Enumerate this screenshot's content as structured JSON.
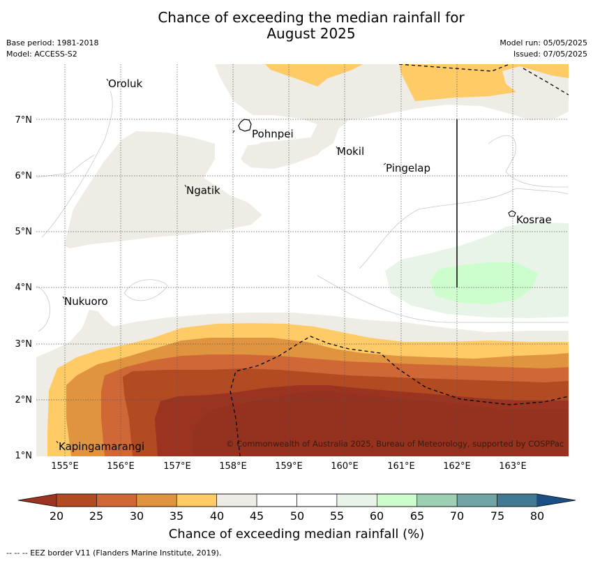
{
  "title_line1": "Chance of exceeding the median rainfall for",
  "title_line2": "August 2025",
  "meta_left": {
    "base_period": "Base period: 1981-2018",
    "model": "Model: ACCESS-S2"
  },
  "meta_right": {
    "model_run": "Model run: 05/05/2025",
    "issued": "Issued: 07/05/2025"
  },
  "map": {
    "lon_range": [
      154.5,
      164.0
    ],
    "lat_range": [
      1.0,
      8.0
    ],
    "x_ticks": [
      "155°E",
      "156°E",
      "157°E",
      "158°E",
      "159°E",
      "160°E",
      "161°E",
      "162°E",
      "163°E"
    ],
    "y_ticks": [
      "1°N",
      "2°N",
      "3°N",
      "4°N",
      "5°N",
      "6°N",
      "7°N"
    ],
    "places": [
      {
        "name": "Oroluk",
        "lon": 155.5,
        "lat": 7.65
      },
      {
        "name": "Pohnpei",
        "lon": 158.3,
        "lat": 6.9
      },
      {
        "name": "Mokil",
        "lon": 159.8,
        "lat": 6.65
      },
      {
        "name": "Pingelap",
        "lon": 160.7,
        "lat": 6.2
      },
      {
        "name": "Ngatik",
        "lon": 157.15,
        "lat": 5.8
      },
      {
        "name": "Kosrae",
        "lon": 163.0,
        "lat": 5.3
      },
      {
        "name": "Nukuoro",
        "lon": 154.9,
        "lat": 3.85
      },
      {
        "name": "Kapingamarangi",
        "lon": 154.85,
        "lat": 1.1
      }
    ],
    "copyright": "© Commonwealth of Australia 2025, Bureau of Meteorology, supported by COSPPac"
  },
  "colorbar": {
    "ticks": [
      "20",
      "25",
      "30",
      "35",
      "40",
      "45",
      "50",
      "55",
      "60",
      "65",
      "70",
      "75",
      "80"
    ],
    "colors": [
      "#b24a22",
      "#cf6836",
      "#e0943f",
      "#fecb66",
      "#efebe5",
      "#ffffff",
      "#ffffff",
      "#e9f4e8",
      "#cdfccd",
      "#9ccfb4",
      "#71a4a5",
      "#427993"
    ],
    "under_color": "#9a3320",
    "over_color": "#1a4f86",
    "label": "Chance of exceeding median rainfall (%)"
  },
  "footnote": "--  --  -- EEZ border V11 (Flanders Marine Institute, 2019)."
}
